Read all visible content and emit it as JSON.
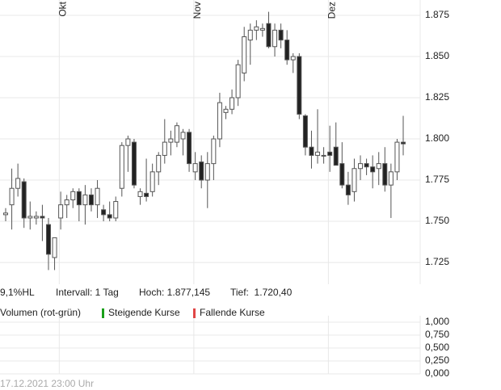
{
  "chart_data": [
    {
      "type": "candlestick",
      "categories": [
        null,
        null,
        null,
        null,
        null,
        null,
        null,
        null,
        null,
        "Okt",
        null,
        null,
        null,
        null,
        null,
        null,
        null,
        null,
        null,
        null,
        null,
        null,
        null,
        null,
        null,
        null,
        null,
        null,
        null,
        null,
        null,
        "Nov",
        null,
        null,
        null,
        null,
        null,
        null,
        null,
        null,
        null,
        null,
        null,
        null,
        null,
        null,
        null,
        null,
        null,
        null,
        null,
        null,
        null,
        "Dez",
        null,
        null,
        null,
        null,
        null,
        null,
        null,
        null,
        null,
        null,
        null,
        null
      ],
      "open": [
        1754,
        1760,
        1770,
        1774,
        1752,
        1752,
        1753,
        1748,
        1728,
        1752,
        1760,
        1763,
        1768,
        1760,
        1766,
        1760,
        1757,
        1754,
        1752,
        1770,
        1796,
        1798,
        1765,
        1767,
        1768,
        1780,
        1790,
        1798,
        1798,
        1800,
        1804,
        1780,
        1786,
        1775,
        1785,
        1800,
        1816,
        1818,
        1825,
        1840,
        1860,
        1866,
        1866,
        1870,
        1856,
        1866,
        1860,
        1848,
        1850,
        1814,
        1795,
        1790,
        1790,
        1792,
        1795,
        1785,
        1772,
        1768,
        1782,
        1785,
        1783,
        1782,
        1785,
        1772,
        1780,
        1798
      ],
      "high": [
        1758,
        1782,
        1785,
        1776,
        1762,
        1756,
        1760,
        1752,
        1740,
        1768,
        1766,
        1770,
        1770,
        1772,
        1770,
        1775,
        1760,
        1762,
        1765,
        1798,
        1802,
        1800,
        1770,
        1788,
        1785,
        1792,
        1812,
        1805,
        1810,
        1806,
        1806,
        1792,
        1790,
        1792,
        1802,
        1828,
        1820,
        1830,
        1848,
        1868,
        1870,
        1872,
        1870,
        1877.145,
        1870,
        1870,
        1866,
        1852,
        1852,
        1815,
        1805,
        1818,
        1795,
        1808,
        1810,
        1798,
        1780,
        1788,
        1790,
        1788,
        1790,
        1792,
        1795,
        1785,
        1800,
        1814
      ],
      "low": [
        1750,
        1745,
        1765,
        1746,
        1745,
        1748,
        1738,
        1720.4,
        1720.4,
        1745,
        1752,
        1758,
        1750,
        1748,
        1756,
        1752,
        1750,
        1750,
        1750,
        1765,
        1780,
        1770,
        1760,
        1762,
        1765,
        1772,
        1785,
        1790,
        1795,
        1790,
        1780,
        1775,
        1770,
        1758,
        1775,
        1795,
        1812,
        1815,
        1820,
        1835,
        1845,
        1860,
        1862,
        1855,
        1850,
        1855,
        1845,
        1840,
        1812,
        1790,
        1782,
        1785,
        1785,
        1780,
        1785,
        1770,
        1760,
        1762,
        1775,
        1778,
        1770,
        1772,
        1768,
        1752,
        1775,
        1790
      ],
      "close": [
        1755,
        1770,
        1776,
        1752,
        1753,
        1753,
        1752,
        1730,
        1740,
        1760,
        1763,
        1768,
        1760,
        1766,
        1760,
        1770,
        1754,
        1752,
        1762,
        1796,
        1800,
        1772,
        1768,
        1765,
        1780,
        1790,
        1798,
        1800,
        1808,
        1804,
        1785,
        1785,
        1775,
        1785,
        1800,
        1822,
        1818,
        1825,
        1845,
        1862,
        1866,
        1868,
        1867,
        1856,
        1866,
        1860,
        1848,
        1850,
        1815,
        1795,
        1790,
        1792,
        1790,
        1790,
        1784,
        1772,
        1766,
        1782,
        1785,
        1783,
        1780,
        1785,
        1772,
        1780,
        1798,
        1797
      ],
      "ylim": [
        1711.8,
        1884.3
      ],
      "yticks": [
        {
          "value": 1725,
          "label": "1.725"
        },
        {
          "value": 1750,
          "label": "1.750"
        },
        {
          "value": 1775,
          "label": "1.775"
        },
        {
          "value": 1800,
          "label": "1.800"
        },
        {
          "value": 1825,
          "label": "1.825"
        },
        {
          "value": 1850,
          "label": "1.850"
        },
        {
          "value": 1875,
          "label": "1.875"
        }
      ],
      "grid": true,
      "up_color": "#ffffff",
      "down_color": "#222222",
      "wick_color": "#555555"
    },
    {
      "type": "volume",
      "title": "Volumen (rot-grün)",
      "series": [
        {
          "name": "Steigende Kurse",
          "color": "#1aa01a"
        },
        {
          "name": "Fallende Kurse",
          "color": "#e04646"
        }
      ],
      "ylim": [
        0,
        1
      ],
      "yticks": [
        {
          "value": 0,
          "label": "0,000"
        },
        {
          "value": 0.25,
          "label": "0,250"
        },
        {
          "value": 0.5,
          "label": "0,500"
        },
        {
          "value": 0.75,
          "label": "0,750"
        },
        {
          "value": 1,
          "label": "1,000"
        }
      ],
      "grid": true
    }
  ],
  "info_bar": [
    "9,1%HL",
    "Intervall: 1 Tag",
    "Hoch: 1.877,145",
    "Tief:  1.720,40"
  ],
  "timestamp": "17.12.2021 23:00 Uhr"
}
